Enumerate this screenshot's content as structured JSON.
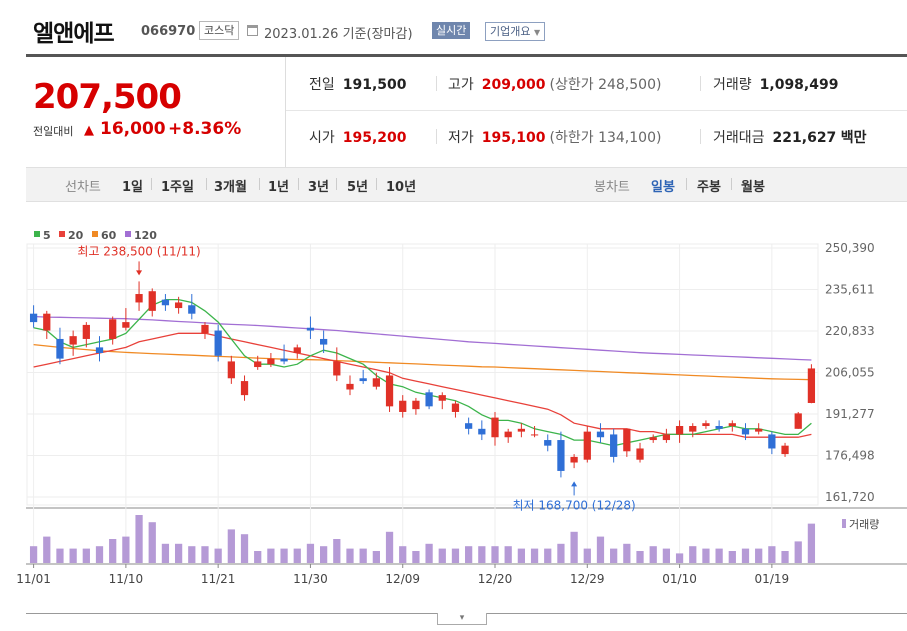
{
  "header": {
    "company": "엘앤에프",
    "code": "066970",
    "market": "코스닥",
    "date": "2023.01.26",
    "basis": "기준(장마감)",
    "realtime_btn": "실시간",
    "company_info_btn": "기업개요"
  },
  "quote": {
    "price": "207,500",
    "diff_label": "전일대비",
    "diff_arrow": "▲",
    "diff_value": "16,000",
    "diff_pct": "+8.36%",
    "prev_close_label": "전일",
    "prev_close": "191,500",
    "high_label": "고가",
    "high": "209,000",
    "upper_limit_note": "(상한가 248,500)",
    "volume_label": "거래량",
    "volume": "1,098,499",
    "open_label": "시가",
    "open": "195,200",
    "low_label": "저가",
    "low": "195,100",
    "lower_limit_note": "(하한가 134,100)",
    "amount_label": "거래대금",
    "amount": "221,627",
    "amount_unit": "백만"
  },
  "toolbar": {
    "line_label": "선차트",
    "line_periods": [
      "1일",
      "1주일",
      "3개월",
      "1년",
      "3년",
      "5년",
      "10년"
    ],
    "candle_label": "봉차트",
    "candle_periods": [
      "일봉",
      "주봉",
      "월봉"
    ],
    "candle_active": "일봉"
  },
  "chart_data": {
    "type": "candlestick",
    "legend": [
      {
        "name": "5",
        "color": "#3cb44b"
      },
      {
        "name": "20",
        "color": "#e8413a"
      },
      {
        "name": "60",
        "color": "#f08a24"
      },
      {
        "name": "120",
        "color": "#a26fd4"
      }
    ],
    "y_ticks": [
      250390,
      235611,
      220833,
      206055,
      191277,
      176498,
      161720
    ],
    "ylim": [
      161720,
      250390
    ],
    "x_tick_labels": [
      {
        "label": "11/01",
        "index": 0
      },
      {
        "label": "11/10",
        "index": 7
      },
      {
        "label": "11/21",
        "index": 14
      },
      {
        "label": "11/30",
        "index": 21
      },
      {
        "label": "12/09",
        "index": 28
      },
      {
        "label": "12/20",
        "index": 35
      },
      {
        "label": "12/29",
        "index": 42
      },
      {
        "label": "01/10",
        "index": 49
      },
      {
        "label": "01/19",
        "index": 56
      }
    ],
    "annotations": {
      "high_text": "최고 238,500 (11/11)",
      "high_index": 8,
      "high_value": 238500,
      "low_text": "최저 168,700 (12/28)",
      "low_index": 41,
      "low_value": 168700
    },
    "volume_label": "거래량",
    "candles": [
      {
        "o": 227000,
        "h": 230000,
        "l": 222000,
        "c": 224000
      },
      {
        "o": 221000,
        "h": 228000,
        "l": 218000,
        "c": 227000
      },
      {
        "o": 218000,
        "h": 222000,
        "l": 209000,
        "c": 211000
      },
      {
        "o": 216000,
        "h": 221000,
        "l": 212000,
        "c": 219000
      },
      {
        "o": 218000,
        "h": 224000,
        "l": 215000,
        "c": 223000
      },
      {
        "o": 215000,
        "h": 219000,
        "l": 210000,
        "c": 213000
      },
      {
        "o": 218000,
        "h": 226000,
        "l": 216000,
        "c": 225000
      },
      {
        "o": 222000,
        "h": 229000,
        "l": 221000,
        "c": 224000
      },
      {
        "o": 231000,
        "h": 238500,
        "l": 228000,
        "c": 234000
      },
      {
        "o": 228000,
        "h": 236000,
        "l": 226000,
        "c": 235000
      },
      {
        "o": 232000,
        "h": 234000,
        "l": 228000,
        "c": 230000
      },
      {
        "o": 229000,
        "h": 233000,
        "l": 227000,
        "c": 231000
      },
      {
        "o": 230000,
        "h": 234000,
        "l": 225000,
        "c": 227000
      },
      {
        "o": 220000,
        "h": 224000,
        "l": 218000,
        "c": 223000
      },
      {
        "o": 221000,
        "h": 223000,
        "l": 210000,
        "c": 212000
      },
      {
        "o": 204000,
        "h": 212000,
        "l": 202000,
        "c": 210000
      },
      {
        "o": 198000,
        "h": 205000,
        "l": 196000,
        "c": 203000
      },
      {
        "o": 208000,
        "h": 212000,
        "l": 207000,
        "c": 210000
      },
      {
        "o": 209000,
        "h": 213000,
        "l": 208000,
        "c": 211000
      },
      {
        "o": 211000,
        "h": 216000,
        "l": 209000,
        "c": 210000
      },
      {
        "o": 213000,
        "h": 216000,
        "l": 211000,
        "c": 215000
      },
      {
        "o": 222000,
        "h": 226000,
        "l": 218000,
        "c": 221000
      },
      {
        "o": 218000,
        "h": 221000,
        "l": 213000,
        "c": 216000
      },
      {
        "o": 205000,
        "h": 215000,
        "l": 203000,
        "c": 210000
      },
      {
        "o": 200000,
        "h": 205000,
        "l": 198000,
        "c": 202000
      },
      {
        "o": 204000,
        "h": 207000,
        "l": 202000,
        "c": 203000
      },
      {
        "o": 201000,
        "h": 206000,
        "l": 200000,
        "c": 204000
      },
      {
        "o": 194000,
        "h": 208000,
        "l": 192000,
        "c": 205000
      },
      {
        "o": 192000,
        "h": 198000,
        "l": 190000,
        "c": 196000
      },
      {
        "o": 193000,
        "h": 197000,
        "l": 191000,
        "c": 196000
      },
      {
        "o": 199000,
        "h": 200000,
        "l": 193000,
        "c": 194000
      },
      {
        "o": 196000,
        "h": 199000,
        "l": 193000,
        "c": 198000
      },
      {
        "o": 192000,
        "h": 196000,
        "l": 190000,
        "c": 195000
      },
      {
        "o": 188000,
        "h": 190000,
        "l": 184000,
        "c": 186000
      },
      {
        "o": 186000,
        "h": 189000,
        "l": 182000,
        "c": 184000
      },
      {
        "o": 183000,
        "h": 192000,
        "l": 180000,
        "c": 190000
      },
      {
        "o": 183000,
        "h": 186000,
        "l": 181000,
        "c": 185000
      },
      {
        "o": 185000,
        "h": 188000,
        "l": 183000,
        "c": 186000
      },
      {
        "o": 184000,
        "h": 187000,
        "l": 183000,
        "c": 184000
      },
      {
        "o": 182000,
        "h": 184000,
        "l": 178000,
        "c": 180000
      },
      {
        "o": 182000,
        "h": 185000,
        "l": 168700,
        "c": 171000
      },
      {
        "o": 174000,
        "h": 177000,
        "l": 172000,
        "c": 176000
      },
      {
        "o": 175000,
        "h": 187000,
        "l": 174000,
        "c": 185000
      },
      {
        "o": 185000,
        "h": 188000,
        "l": 181000,
        "c": 183000
      },
      {
        "o": 184000,
        "h": 186000,
        "l": 174000,
        "c": 176000
      },
      {
        "o": 178000,
        "h": 186000,
        "l": 176000,
        "c": 186000
      },
      {
        "o": 175000,
        "h": 181000,
        "l": 174000,
        "c": 179000
      },
      {
        "o": 182000,
        "h": 184000,
        "l": 181000,
        "c": 183000
      },
      {
        "o": 182000,
        "h": 186000,
        "l": 181000,
        "c": 184000
      },
      {
        "o": 184000,
        "h": 189000,
        "l": 181000,
        "c": 187000
      },
      {
        "o": 185000,
        "h": 188000,
        "l": 183000,
        "c": 187000
      },
      {
        "o": 187000,
        "h": 189000,
        "l": 186000,
        "c": 188000
      },
      {
        "o": 187000,
        "h": 189000,
        "l": 185000,
        "c": 186000
      },
      {
        "o": 187000,
        "h": 189000,
        "l": 185000,
        "c": 188000
      },
      {
        "o": 186000,
        "h": 188000,
        "l": 182000,
        "c": 184000
      },
      {
        "o": 185000,
        "h": 188000,
        "l": 184000,
        "c": 186000
      },
      {
        "o": 184000,
        "h": 185000,
        "l": 177000,
        "c": 179000
      },
      {
        "o": 177000,
        "h": 181000,
        "l": 176000,
        "c": 180000
      },
      {
        "o": 186000,
        "h": 192000,
        "l": 186000,
        "c": 191500
      },
      {
        "o": 195200,
        "h": 209000,
        "l": 195100,
        "c": 207500
      }
    ],
    "ma5": [
      222000,
      221000,
      217000,
      215000,
      216000,
      217000,
      218000,
      220000,
      225000,
      230000,
      232000,
      232000,
      231000,
      228000,
      224000,
      218000,
      212000,
      209000,
      209000,
      208000,
      209000,
      212000,
      214000,
      213000,
      211000,
      209000,
      205000,
      202000,
      201000,
      199000,
      198000,
      197000,
      196000,
      194000,
      191000,
      189000,
      189000,
      188000,
      186000,
      185000,
      184000,
      182000,
      182000,
      181000,
      180000,
      181000,
      182000,
      183000,
      184000,
      184000,
      184000,
      185000,
      186000,
      187000,
      186000,
      186000,
      185000,
      184000,
      184000,
      188000
    ],
    "ma20": [
      208000,
      209000,
      210000,
      211000,
      212000,
      213000,
      214000,
      215000,
      217000,
      218000,
      219000,
      220000,
      220000,
      220000,
      219000,
      218000,
      217000,
      216000,
      215000,
      214000,
      213000,
      212000,
      211000,
      210000,
      209000,
      208000,
      207000,
      206000,
      204000,
      203000,
      202000,
      201000,
      200000,
      199000,
      198000,
      197000,
      196000,
      195000,
      194000,
      193000,
      191000,
      188000,
      187000,
      186000,
      186000,
      186000,
      185000,
      185000,
      184000,
      184000,
      184000,
      184000,
      184000,
      184000,
      183000,
      183000,
      183000,
      183000,
      183000,
      184000
    ],
    "ma60": [
      216000,
      215500,
      215000,
      214600,
      214200,
      213800,
      213500,
      213200,
      213000,
      212800,
      212600,
      212400,
      212200,
      212000,
      211800,
      211600,
      211400,
      211200,
      211000,
      210800,
      210700,
      210600,
      210500,
      210300,
      210100,
      209900,
      209700,
      209500,
      209300,
      209100,
      208900,
      208700,
      208500,
      208300,
      208100,
      208000,
      207800,
      207600,
      207400,
      207200,
      207000,
      206800,
      206600,
      206400,
      206200,
      206000,
      205800,
      205600,
      205400,
      205200,
      205000,
      204800,
      204600,
      204400,
      204200,
      204000,
      203800,
      203700,
      203600,
      203500
    ],
    "ma120": [
      226000,
      225800,
      225700,
      225600,
      225500,
      225400,
      225300,
      225200,
      225000,
      224800,
      224500,
      224200,
      224000,
      223700,
      223400,
      223200,
      223000,
      222800,
      222500,
      222200,
      221900,
      221600,
      221300,
      221000,
      220600,
      220200,
      219800,
      219400,
      219000,
      218600,
      218200,
      217800,
      217400,
      217000,
      216700,
      216400,
      216100,
      215800,
      215500,
      215200,
      214900,
      214600,
      214300,
      214000,
      213700,
      213400,
      213100,
      212900,
      212700,
      212500,
      212300,
      212100,
      211900,
      211700,
      211500,
      211300,
      211100,
      210900,
      210700,
      210500
    ],
    "volume": [
      0.35,
      0.55,
      0.3,
      0.3,
      0.3,
      0.35,
      0.5,
      0.55,
      1.0,
      0.85,
      0.4,
      0.4,
      0.35,
      0.35,
      0.3,
      0.7,
      0.6,
      0.25,
      0.3,
      0.3,
      0.3,
      0.4,
      0.35,
      0.5,
      0.3,
      0.3,
      0.25,
      0.65,
      0.35,
      0.25,
      0.4,
      0.3,
      0.3,
      0.35,
      0.35,
      0.35,
      0.35,
      0.3,
      0.3,
      0.3,
      0.4,
      0.65,
      0.3,
      0.55,
      0.3,
      0.4,
      0.25,
      0.35,
      0.3,
      0.2,
      0.35,
      0.3,
      0.3,
      0.25,
      0.3,
      0.3,
      0.35,
      0.25,
      0.45,
      0.82
    ]
  }
}
